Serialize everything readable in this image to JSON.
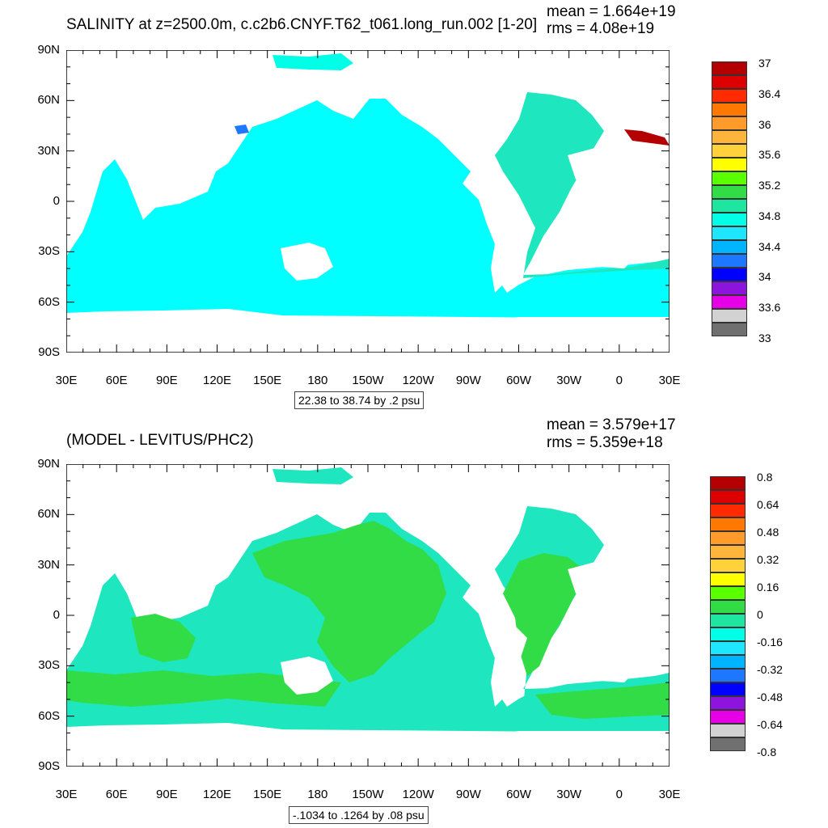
{
  "top": {
    "title": "SALINITY at z=2500.0m, c.c2b6.CNYF.T62_t061.long_run.002 [1-20]",
    "mean": "mean = 1.664e+19",
    "rms": "rms = 4.08e+19",
    "range": "22.38 to 38.74 by .2 psu",
    "colorbar": {
      "labels": [
        "37",
        "36.4",
        "36",
        "35.6",
        "35.2",
        "34.8",
        "34.4",
        "34",
        "33.6",
        "33"
      ],
      "colors": [
        "#b40000",
        "#dc0000",
        "#ff2a00",
        "#ff7800",
        "#ff9b2a",
        "#ffb43c",
        "#ffd23c",
        "#ffff00",
        "#5aff00",
        "#32dc46",
        "#1ee6a0",
        "#00ffe6",
        "#1ee6ff",
        "#00b4ff",
        "#1e78ff",
        "#0000ff",
        "#8c14dc",
        "#e600e6",
        "#d2d2d2",
        "#707070"
      ]
    }
  },
  "bottom": {
    "title": "(MODEL - LEVITUS/PHC2)",
    "mean": "mean = 3.579e+17",
    "rms": "rms = 5.359e+18",
    "range": "-.1034 to .1264 by .08 psu",
    "colorbar": {
      "labels": [
        "0.8",
        "0.64",
        "0.48",
        "0.32",
        "0.16",
        "0",
        "-0.16",
        "-0.32",
        "-0.48",
        "-0.64",
        "-0.8"
      ],
      "colors": [
        "#b40000",
        "#dc0000",
        "#ff2a00",
        "#ff7800",
        "#ff9b2a",
        "#ffb43c",
        "#ffd23c",
        "#ffff00",
        "#5aff00",
        "#32dc46",
        "#1ee6a0",
        "#00ffe6",
        "#1ee6ff",
        "#00b4ff",
        "#1e78ff",
        "#0000ff",
        "#8c14dc",
        "#e600e6",
        "#d2d2d2",
        "#707070"
      ]
    }
  },
  "axes": {
    "lat_labels": [
      "90N",
      "60N",
      "30N",
      "0",
      "30S",
      "60S",
      "90S"
    ],
    "lon_labels": [
      "30E",
      "60E",
      "90E",
      "120E",
      "150E",
      "180",
      "150W",
      "120W",
      "90W",
      "60W",
      "30W",
      "0",
      "30E"
    ]
  },
  "colors": {
    "pacific_indian_top": "#00ffff",
    "atlantic_top": "#1ee6be",
    "diff_positive": "#32dc46",
    "diff_near_zero": "#1ee6be",
    "diff_negative": "#22e6e6",
    "land": "#ffffff"
  }
}
